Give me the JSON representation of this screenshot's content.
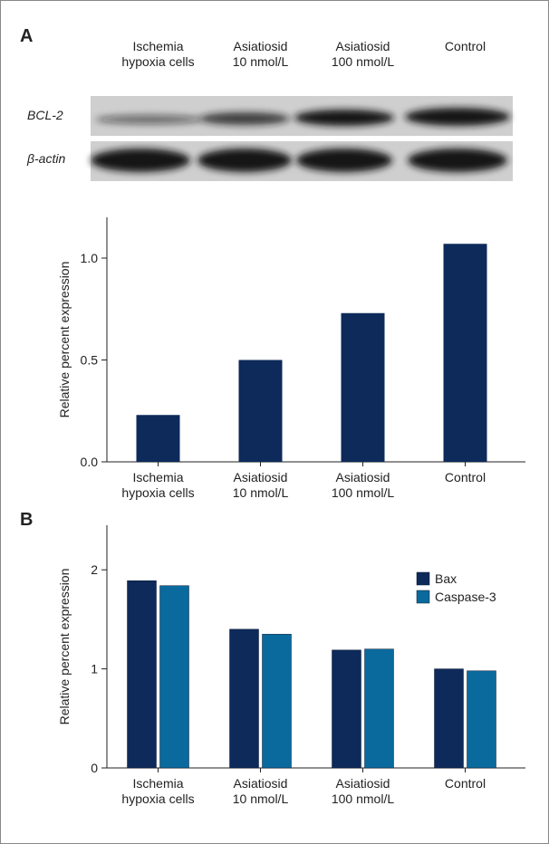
{
  "panel_labels": [
    "A",
    "B"
  ],
  "blot": {
    "columns": [
      "Ischemia\nhypoxia cells",
      "Asiatiosid\n10 nmol/L",
      "Asiatiosid\n100 nmol/L",
      "Control"
    ],
    "rows": [
      "BCL-2",
      "β-actin"
    ]
  },
  "chart_data": [
    {
      "type": "bar",
      "y_label": "Relative percent expression",
      "categories": [
        "Ischemia\nhypoxia cells",
        "Asiatiosid\n10 nmol/L",
        "Asiatiosid\n100 nmol/L",
        "Control"
      ],
      "values": [
        0.23,
        0.5,
        0.73,
        1.07
      ],
      "color": "#0d2a5a",
      "ylim": [
        0,
        1.2
      ],
      "yticks": [
        {
          "value": 0,
          "label": "0.0"
        },
        0.5,
        {
          "value": 1,
          "label": "1.0"
        }
      ]
    },
    {
      "type": "grouped-bar",
      "y_label": "Relative percent expression",
      "categories": [
        "Ischemia\nhypoxia cells",
        "Asiatiosid\n10 nmol/L",
        "Asiatiosid\n100 nmol/L",
        "Control"
      ],
      "series": [
        {
          "name": "Bax",
          "color": "#0d2a5a",
          "values": [
            1.89,
            1.4,
            1.19,
            1.0
          ]
        },
        {
          "name": "Caspase-3",
          "color": "#0a6a9e",
          "values": [
            1.84,
            1.35,
            1.2,
            0.98
          ]
        }
      ],
      "ylim": [
        0,
        2.45
      ],
      "yticks": [
        0,
        1,
        2
      ],
      "legend": "upper right"
    }
  ]
}
